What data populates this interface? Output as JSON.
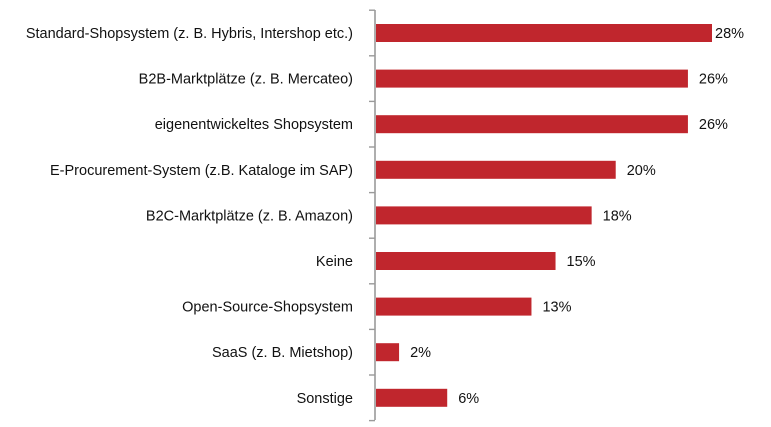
{
  "chart_data": {
    "type": "bar",
    "orientation": "horizontal",
    "categories": [
      "Standard-Shopsystem (z. B. Hybris, Intershop etc.)",
      "B2B-Marktplätze (z. B. Mercateo)",
      "eigenentwickeltes Shopsystem",
      "E-Procurement-System (z.B. Kataloge im SAP)",
      "B2C-Marktplätze (z. B. Amazon)",
      "Keine",
      "Open-Source-Shopsystem",
      "SaaS (z. B. Mietshop)",
      "Sonstige"
    ],
    "values": [
      28,
      26,
      26,
      20,
      18,
      15,
      13,
      2,
      6
    ],
    "value_labels": [
      "28%",
      "26%",
      "26%",
      "20%",
      "18%",
      "15%",
      "13%",
      "2%",
      "6%"
    ],
    "unit": "%",
    "xlim": [
      0,
      28
    ],
    "title": "",
    "xlabel": "",
    "ylabel": "",
    "grid": false,
    "legend": "none",
    "bar_color": "#c0262d",
    "axis_color": "#9a9a9a"
  }
}
